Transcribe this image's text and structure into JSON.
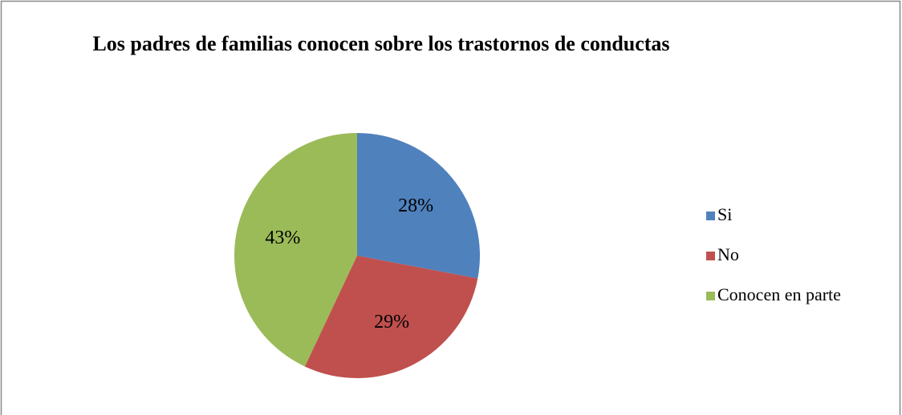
{
  "chart_data": {
    "type": "pie",
    "title": "Los padres de familias conocen sobre los trastornos de conductas",
    "categories": [
      "Si",
      "No",
      "Conocen en parte"
    ],
    "values": [
      28,
      29,
      43
    ],
    "value_labels": [
      "28%",
      "29%",
      "43%"
    ],
    "colors": [
      "#4f81bd",
      "#c0504d",
      "#9bbb59"
    ],
    "legend": "right"
  }
}
